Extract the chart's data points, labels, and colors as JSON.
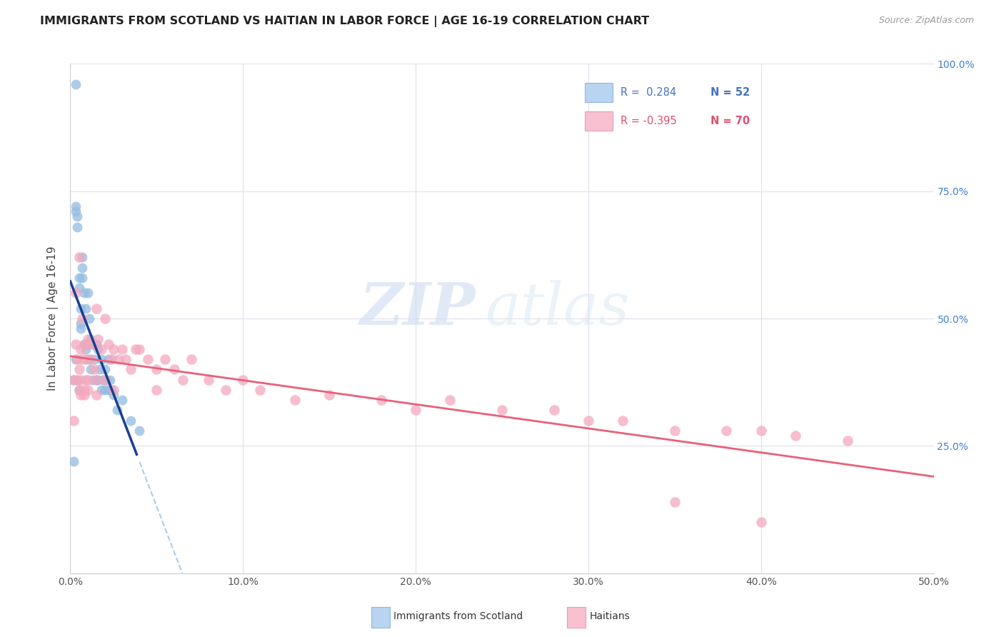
{
  "title": "IMMIGRANTS FROM SCOTLAND VS HAITIAN IN LABOR FORCE | AGE 16-19 CORRELATION CHART",
  "source": "Source: ZipAtlas.com",
  "ylabel": "In Labor Force | Age 16-19",
  "xmin": 0.0,
  "xmax": 0.5,
  "ymin": 0.0,
  "ymax": 1.0,
  "ytick_values": [
    0.0,
    0.25,
    0.5,
    0.75,
    1.0
  ],
  "ytick_labels": [
    "",
    "25.0%",
    "50.0%",
    "75.0%",
    "100.0%"
  ],
  "xtick_values": [
    0.0,
    0.1,
    0.2,
    0.3,
    0.4,
    0.5
  ],
  "xtick_labels": [
    "0.0%",
    "10.0%",
    "20.0%",
    "30.0%",
    "40.0%",
    "50.0%"
  ],
  "scotland_color": "#92bce0",
  "haitian_color": "#f4a8be",
  "scotland_line_color": "#1a3f8f",
  "haitian_line_color": "#e8607a",
  "dashed_line_color": "#aaccee",
  "background_color": "#ffffff",
  "grid_color": "#e0e0ea",
  "watermark_color": "#d0dff0",
  "legend_fill_scot": "#b8d4f0",
  "legend_fill_hait": "#f8c0d0",
  "legend_border": "#cccccc",
  "right_axis_color": "#4080d0",
  "scotland_x": [
    0.003,
    0.002,
    0.002,
    0.003,
    0.003,
    0.004,
    0.004,
    0.005,
    0.005,
    0.006,
    0.006,
    0.006,
    0.007,
    0.007,
    0.007,
    0.008,
    0.008,
    0.009,
    0.009,
    0.01,
    0.01,
    0.01,
    0.011,
    0.011,
    0.012,
    0.012,
    0.013,
    0.013,
    0.014,
    0.015,
    0.015,
    0.016,
    0.016,
    0.017,
    0.018,
    0.018,
    0.019,
    0.02,
    0.02,
    0.021,
    0.022,
    0.022,
    0.023,
    0.024,
    0.025,
    0.027,
    0.03,
    0.035,
    0.04,
    0.003,
    0.004,
    0.005
  ],
  "scotland_y": [
    0.96,
    0.38,
    0.22,
    0.72,
    0.71,
    0.7,
    0.68,
    0.58,
    0.56,
    0.52,
    0.49,
    0.48,
    0.62,
    0.6,
    0.58,
    0.55,
    0.45,
    0.52,
    0.44,
    0.55,
    0.45,
    0.42,
    0.5,
    0.42,
    0.46,
    0.4,
    0.45,
    0.38,
    0.42,
    0.45,
    0.38,
    0.44,
    0.38,
    0.4,
    0.42,
    0.36,
    0.38,
    0.4,
    0.36,
    0.38,
    0.42,
    0.36,
    0.38,
    0.36,
    0.35,
    0.32,
    0.34,
    0.3,
    0.28,
    0.42,
    0.38,
    0.36
  ],
  "haitian_x": [
    0.002,
    0.002,
    0.003,
    0.003,
    0.004,
    0.004,
    0.005,
    0.005,
    0.005,
    0.006,
    0.006,
    0.007,
    0.007,
    0.008,
    0.008,
    0.009,
    0.009,
    0.01,
    0.01,
    0.011,
    0.012,
    0.013,
    0.014,
    0.015,
    0.015,
    0.016,
    0.018,
    0.02,
    0.022,
    0.024,
    0.025,
    0.028,
    0.03,
    0.032,
    0.035,
    0.038,
    0.04,
    0.045,
    0.05,
    0.055,
    0.06,
    0.065,
    0.07,
    0.08,
    0.09,
    0.1,
    0.11,
    0.13,
    0.15,
    0.18,
    0.2,
    0.22,
    0.25,
    0.28,
    0.3,
    0.32,
    0.35,
    0.38,
    0.4,
    0.42,
    0.45,
    0.006,
    0.008,
    0.01,
    0.015,
    0.02,
    0.025,
    0.05,
    0.35,
    0.4
  ],
  "haitian_y": [
    0.38,
    0.3,
    0.55,
    0.45,
    0.42,
    0.38,
    0.62,
    0.4,
    0.36,
    0.44,
    0.35,
    0.5,
    0.42,
    0.45,
    0.36,
    0.42,
    0.38,
    0.46,
    0.38,
    0.45,
    0.42,
    0.45,
    0.4,
    0.52,
    0.38,
    0.46,
    0.44,
    0.5,
    0.45,
    0.42,
    0.44,
    0.42,
    0.44,
    0.42,
    0.4,
    0.44,
    0.44,
    0.42,
    0.4,
    0.42,
    0.4,
    0.38,
    0.42,
    0.38,
    0.36,
    0.38,
    0.36,
    0.34,
    0.35,
    0.34,
    0.32,
    0.34,
    0.32,
    0.32,
    0.3,
    0.3,
    0.28,
    0.28,
    0.28,
    0.27,
    0.26,
    0.38,
    0.35,
    0.36,
    0.35,
    0.38,
    0.36,
    0.36,
    0.14,
    0.1
  ]
}
